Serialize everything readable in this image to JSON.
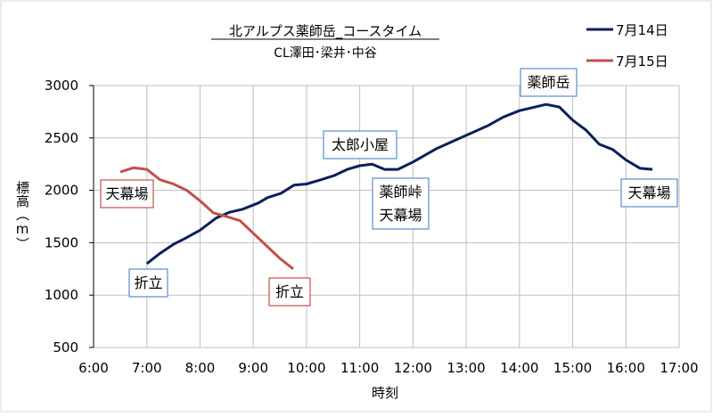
{
  "chart_data": {
    "type": "line",
    "title": "北アルプス薬師岳_コースタイム",
    "subtitle": "CL澤田･梁井･中谷",
    "xlabel": "時刻",
    "ylabel": "標高（m）",
    "xlim": [
      "6:00",
      "17:00"
    ],
    "ylim": [
      500,
      3000
    ],
    "x_ticks": [
      "6:00",
      "7:00",
      "8:00",
      "9:00",
      "10:00",
      "11:00",
      "12:00",
      "13:00",
      "14:00",
      "15:00",
      "16:00",
      "17:00"
    ],
    "y_ticks": [
      "500",
      "1000",
      "1500",
      "2000",
      "2500",
      "3000"
    ],
    "grid": true,
    "legend_position": "top-right",
    "series": [
      {
        "name": "7月14日",
        "color": "#0d1f5c",
        "x": [
          "7:00",
          "7:15",
          "7:30",
          "7:43",
          "8:00",
          "8:18",
          "8:33",
          "8:48",
          "9:06",
          "9:16",
          "9:31",
          "9:46",
          "10:00",
          "10:16",
          "10:31",
          "10:46",
          "11:00",
          "11:14",
          "11:28",
          "11:43",
          "12:00",
          "12:27",
          "13:00",
          "13:25",
          "13:42",
          "14:00",
          "14:30",
          "14:45",
          "15:00",
          "15:15",
          "15:30",
          "15:45",
          "16:00",
          "16:16",
          "16:30"
        ],
        "y": [
          1300,
          1400,
          1485,
          1540,
          1620,
          1735,
          1790,
          1820,
          1880,
          1930,
          1970,
          2050,
          2060,
          2100,
          2140,
          2200,
          2235,
          2250,
          2200,
          2200,
          2270,
          2400,
          2525,
          2620,
          2700,
          2760,
          2820,
          2795,
          2670,
          2575,
          2440,
          2390,
          2290,
          2210,
          2200
        ]
      },
      {
        "name": "7月15日",
        "color": "#c0504d",
        "x": [
          "6:30",
          "6:45",
          "7:00",
          "7:15",
          "7:30",
          "7:45",
          "8:00",
          "8:15",
          "8:30",
          "8:45",
          "9:00",
          "9:15",
          "9:30",
          "9:45"
        ],
        "y": [
          2175,
          2215,
          2200,
          2100,
          2060,
          2000,
          1900,
          1785,
          1750,
          1710,
          1590,
          1470,
          1350,
          1250
        ]
      }
    ],
    "annotations": [
      {
        "series": "7月15日",
        "lines": [
          "天幕場"
        ],
        "color": "#c0504d"
      },
      {
        "series": "7月14日",
        "lines": [
          "折立"
        ],
        "color": "#5b8bd0"
      },
      {
        "series": "7月15日",
        "lines": [
          "折立"
        ],
        "color": "#c0504d"
      },
      {
        "series": "7月14日",
        "lines": [
          "太郎小屋"
        ],
        "color": "#5b8bd0"
      },
      {
        "series": "7月14日",
        "lines": [
          "薬師峠",
          "天幕場"
        ],
        "color": "#5b8bd0"
      },
      {
        "series": "7月14日",
        "lines": [
          "薬師岳"
        ],
        "color": "#5b8bd0"
      },
      {
        "series": "7月14日",
        "lines": [
          "天幕場"
        ],
        "color": "#5b8bd0"
      }
    ]
  }
}
